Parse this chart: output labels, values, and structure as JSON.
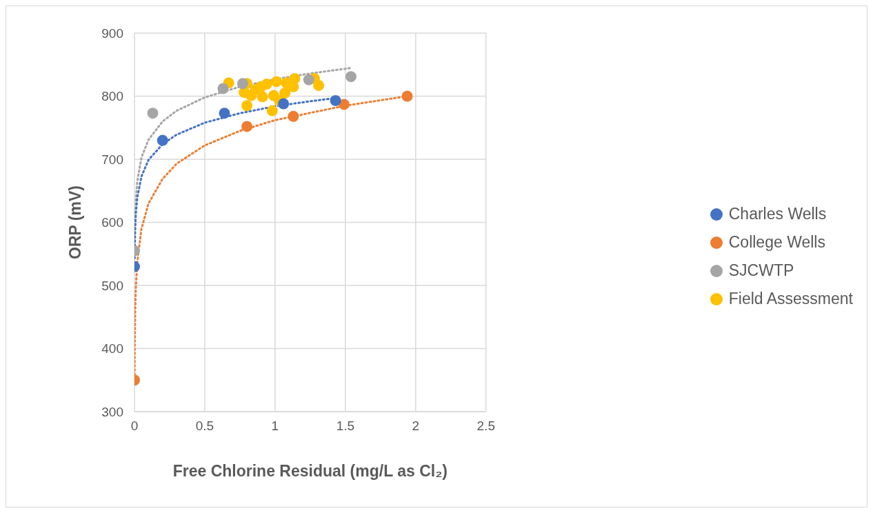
{
  "chart_data": {
    "type": "scatter",
    "xlabel": "Free Chlorine Residual (mg/L as Cl₂)",
    "ylabel": "ORP (mV)",
    "xlim": [
      0,
      2.5
    ],
    "xticks": [
      0,
      0.5,
      1,
      1.5,
      2,
      2.5
    ],
    "ylim": [
      300,
      900
    ],
    "yticks": [
      300,
      400,
      500,
      600,
      700,
      800,
      900
    ],
    "grid": true,
    "legend": "right",
    "marker": "circle",
    "series": [
      {
        "name": "Charles Wells",
        "color": "#4472c4",
        "x": [
          0,
          0.2,
          0.64,
          1.06,
          1.43
        ],
        "values": [
          530,
          730,
          773,
          788,
          793
        ]
      },
      {
        "name": "College Wells",
        "color": "#ed7d31",
        "x": [
          0,
          0.8,
          1.13,
          1.49,
          1.94
        ],
        "values": [
          350,
          752,
          768,
          787,
          800
        ]
      },
      {
        "name": "SJCWTP",
        "color": "#a5a5a5",
        "x": [
          0,
          0.13,
          0.63,
          0.77,
          1.24,
          1.54
        ],
        "values": [
          555,
          773,
          812,
          820,
          826,
          831
        ]
      },
      {
        "name": "Field Assessment",
        "color": "#ffc000",
        "x": [
          0.67,
          0.78,
          0.8,
          0.8,
          0.83,
          0.86,
          0.9,
          0.91,
          0.94,
          0.98,
          0.99,
          1.01,
          1.03,
          1.07,
          1.08,
          1.13,
          1.14,
          1.28,
          1.31
        ],
        "values": [
          821,
          806,
          820,
          785,
          801,
          810,
          815,
          799,
          819,
          777,
          801,
          823,
          793,
          805,
          821,
          815,
          828,
          828,
          817
        ]
      },
      {
        "type": "line",
        "color": "#4472c4",
        "line_style": "dotted",
        "marker": "none",
        "x": [
          0.0015,
          0.005,
          0.01,
          0.02,
          0.05,
          0.1,
          0.2,
          0.3,
          0.5,
          0.75,
          1,
          1.25,
          1.43
        ],
        "values": [
          543,
          588,
          614,
          639,
          673,
          699,
          724,
          739,
          758,
          773,
          784,
          792,
          797
        ]
      },
      {
        "type": "line",
        "color": "#ed7d31",
        "line_style": "dotted",
        "marker": "none",
        "x": [
          0.0008,
          0.002,
          0.005,
          0.01,
          0.02,
          0.05,
          0.1,
          0.2,
          0.3,
          0.5,
          0.75,
          1,
          1.5,
          1.94
        ],
        "values": [
          352,
          405,
          457,
          497,
          537,
          590,
          630,
          669,
          693,
          722,
          745,
          762,
          785,
          800
        ]
      },
      {
        "type": "line",
        "color": "#a5a5a5",
        "line_style": "dotted",
        "marker": "none",
        "x": [
          0.002,
          0.005,
          0.01,
          0.02,
          0.05,
          0.1,
          0.2,
          0.3,
          0.5,
          0.75,
          1,
          1.25,
          1.55
        ],
        "values": [
          569,
          607,
          636,
          665,
          703,
          731,
          760,
          777,
          798,
          815,
          827,
          836,
          845
        ]
      }
    ]
  }
}
